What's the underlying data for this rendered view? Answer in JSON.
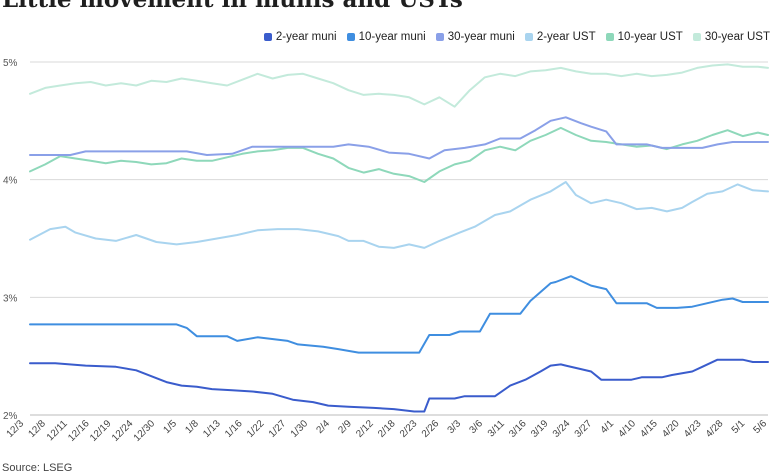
{
  "chart_data": {
    "type": "line",
    "title": "Little movement in munis and USTs",
    "source": "Source: LSEG",
    "y_ticks": [
      "5%",
      "4%",
      "3%",
      "2%"
    ],
    "ylim": [
      2,
      5
    ],
    "grid": true,
    "legend_position": "top-right",
    "x_tick_labels": [
      "12/3",
      "12/8",
      "12/11",
      "12/16",
      "12/19",
      "12/24",
      "12/30",
      "1/5",
      "1/8",
      "1/13",
      "1/16",
      "1/22",
      "1/27",
      "1/30",
      "2/4",
      "2/9",
      "2/12",
      "2/18",
      "2/23",
      "2/26",
      "3/3",
      "3/6",
      "3/11",
      "3/16",
      "3/19",
      "3/24",
      "3/27",
      "4/1",
      "4/10",
      "4/15",
      "4/20",
      "4/23",
      "4/28",
      "5/1",
      "5/6"
    ],
    "series": [
      {
        "name": "2-year muni",
        "color": "#3a5ccc",
        "values": [
          [
            0,
            2.44
          ],
          [
            5,
            2.44
          ],
          [
            11,
            2.42
          ],
          [
            17,
            2.41
          ],
          [
            21,
            2.38
          ],
          [
            24,
            2.33
          ],
          [
            27,
            2.28
          ],
          [
            30,
            2.25
          ],
          [
            33,
            2.24
          ],
          [
            36,
            2.22
          ],
          [
            40,
            2.21
          ],
          [
            44,
            2.2
          ],
          [
            48,
            2.18
          ],
          [
            52,
            2.13
          ],
          [
            56,
            2.11
          ],
          [
            59,
            2.08
          ],
          [
            63,
            2.07
          ],
          [
            68,
            2.06
          ],
          [
            72,
            2.05
          ],
          [
            76,
            2.03
          ],
          [
            78,
            2.03
          ],
          [
            79,
            2.14
          ],
          [
            84,
            2.14
          ],
          [
            86,
            2.16
          ],
          [
            92,
            2.16
          ],
          [
            95,
            2.25
          ],
          [
            98,
            2.3
          ],
          [
            101,
            2.37
          ],
          [
            103,
            2.42
          ],
          [
            105,
            2.43
          ],
          [
            106,
            2.42
          ],
          [
            109,
            2.39
          ],
          [
            111,
            2.37
          ],
          [
            113,
            2.3
          ],
          [
            119,
            2.3
          ],
          [
            121,
            2.32
          ],
          [
            125,
            2.32
          ],
          [
            127,
            2.34
          ],
          [
            131,
            2.37
          ],
          [
            133,
            2.41
          ],
          [
            136,
            2.47
          ],
          [
            141,
            2.47
          ],
          [
            143,
            2.45
          ],
          [
            146,
            2.45
          ]
        ]
      },
      {
        "name": "10-year muni",
        "color": "#3f8ee0",
        "values": [
          [
            0,
            2.77
          ],
          [
            29,
            2.77
          ],
          [
            31,
            2.74
          ],
          [
            33,
            2.67
          ],
          [
            39,
            2.67
          ],
          [
            41,
            2.63
          ],
          [
            45,
            2.66
          ],
          [
            51,
            2.63
          ],
          [
            53,
            2.6
          ],
          [
            58,
            2.58
          ],
          [
            61,
            2.56
          ],
          [
            65,
            2.53
          ],
          [
            77,
            2.53
          ],
          [
            79,
            2.68
          ],
          [
            83,
            2.68
          ],
          [
            85,
            2.71
          ],
          [
            89,
            2.71
          ],
          [
            91,
            2.86
          ],
          [
            97,
            2.86
          ],
          [
            99,
            2.97
          ],
          [
            103,
            3.12
          ],
          [
            104,
            3.13
          ],
          [
            107,
            3.18
          ],
          [
            109,
            3.14
          ],
          [
            111,
            3.1
          ],
          [
            114,
            3.07
          ],
          [
            116,
            2.95
          ],
          [
            122,
            2.95
          ],
          [
            124,
            2.91
          ],
          [
            128,
            2.91
          ],
          [
            131,
            2.92
          ],
          [
            134,
            2.95
          ],
          [
            137,
            2.98
          ],
          [
            139,
            2.99
          ],
          [
            141,
            2.96
          ],
          [
            146,
            2.96
          ]
        ]
      },
      {
        "name": "30-year muni",
        "color": "#8aa0e8",
        "values": [
          [
            0,
            4.21
          ],
          [
            8,
            4.21
          ],
          [
            11,
            4.24
          ],
          [
            15,
            4.24
          ],
          [
            19,
            4.24
          ],
          [
            24,
            4.24
          ],
          [
            28,
            4.24
          ],
          [
            31,
            4.24
          ],
          [
            35,
            4.21
          ],
          [
            40,
            4.22
          ],
          [
            44,
            4.28
          ],
          [
            50,
            4.28
          ],
          [
            56,
            4.28
          ],
          [
            60,
            4.28
          ],
          [
            63,
            4.3
          ],
          [
            67,
            4.28
          ],
          [
            71,
            4.23
          ],
          [
            75,
            4.22
          ],
          [
            79,
            4.18
          ],
          [
            82,
            4.25
          ],
          [
            86,
            4.27
          ],
          [
            90,
            4.3
          ],
          [
            93,
            4.35
          ],
          [
            97,
            4.35
          ],
          [
            100,
            4.42
          ],
          [
            103,
            4.5
          ],
          [
            106,
            4.53
          ],
          [
            109,
            4.48
          ],
          [
            111,
            4.45
          ],
          [
            114,
            4.41
          ],
          [
            116,
            4.3
          ],
          [
            122,
            4.3
          ],
          [
            125,
            4.27
          ],
          [
            129,
            4.27
          ],
          [
            133,
            4.27
          ],
          [
            136,
            4.3
          ],
          [
            139,
            4.32
          ],
          [
            142,
            4.32
          ],
          [
            146,
            4.32
          ]
        ]
      },
      {
        "name": "2-year UST",
        "color": "#a9d4ef",
        "values": [
          [
            0,
            3.49
          ],
          [
            4,
            3.58
          ],
          [
            7,
            3.6
          ],
          [
            9,
            3.55
          ],
          [
            13,
            3.5
          ],
          [
            17,
            3.48
          ],
          [
            21,
            3.53
          ],
          [
            25,
            3.47
          ],
          [
            29,
            3.45
          ],
          [
            33,
            3.47
          ],
          [
            37,
            3.5
          ],
          [
            41,
            3.53
          ],
          [
            45,
            3.57
          ],
          [
            49,
            3.58
          ],
          [
            53,
            3.58
          ],
          [
            57,
            3.56
          ],
          [
            61,
            3.52
          ],
          [
            63,
            3.48
          ],
          [
            66,
            3.48
          ],
          [
            69,
            3.43
          ],
          [
            72,
            3.42
          ],
          [
            75,
            3.45
          ],
          [
            78,
            3.42
          ],
          [
            81,
            3.48
          ],
          [
            85,
            3.55
          ],
          [
            88,
            3.6
          ],
          [
            92,
            3.7
          ],
          [
            95,
            3.73
          ],
          [
            99,
            3.83
          ],
          [
            103,
            3.9
          ],
          [
            106,
            3.98
          ],
          [
            108,
            3.87
          ],
          [
            111,
            3.8
          ],
          [
            114,
            3.83
          ],
          [
            117,
            3.8
          ],
          [
            120,
            3.75
          ],
          [
            123,
            3.76
          ],
          [
            126,
            3.73
          ],
          [
            129,
            3.76
          ],
          [
            131,
            3.81
          ],
          [
            134,
            3.88
          ],
          [
            137,
            3.9
          ],
          [
            140,
            3.96
          ],
          [
            143,
            3.91
          ],
          [
            146,
            3.9
          ]
        ]
      },
      {
        "name": "10-year UST",
        "color": "#8ed8ba",
        "values": [
          [
            0,
            4.07
          ],
          [
            3,
            4.13
          ],
          [
            6,
            4.2
          ],
          [
            9,
            4.18
          ],
          [
            12,
            4.16
          ],
          [
            15,
            4.14
          ],
          [
            18,
            4.16
          ],
          [
            21,
            4.15
          ],
          [
            24,
            4.13
          ],
          [
            27,
            4.14
          ],
          [
            30,
            4.18
          ],
          [
            33,
            4.16
          ],
          [
            36,
            4.16
          ],
          [
            39,
            4.19
          ],
          [
            42,
            4.22
          ],
          [
            45,
            4.24
          ],
          [
            48,
            4.25
          ],
          [
            51,
            4.27
          ],
          [
            54,
            4.27
          ],
          [
            57,
            4.22
          ],
          [
            60,
            4.18
          ],
          [
            63,
            4.1
          ],
          [
            66,
            4.06
          ],
          [
            69,
            4.09
          ],
          [
            72,
            4.05
          ],
          [
            75,
            4.03
          ],
          [
            78,
            3.98
          ],
          [
            81,
            4.07
          ],
          [
            84,
            4.13
          ],
          [
            87,
            4.16
          ],
          [
            90,
            4.25
          ],
          [
            93,
            4.28
          ],
          [
            96,
            4.25
          ],
          [
            99,
            4.33
          ],
          [
            102,
            4.38
          ],
          [
            105,
            4.44
          ],
          [
            108,
            4.38
          ],
          [
            111,
            4.33
          ],
          [
            114,
            4.32
          ],
          [
            117,
            4.3
          ],
          [
            120,
            4.28
          ],
          [
            123,
            4.29
          ],
          [
            126,
            4.26
          ],
          [
            129,
            4.3
          ],
          [
            132,
            4.33
          ],
          [
            135,
            4.38
          ],
          [
            138,
            4.42
          ],
          [
            141,
            4.37
          ],
          [
            144,
            4.4
          ],
          [
            146,
            4.38
          ]
        ]
      },
      {
        "name": "30-year UST",
        "color": "#c3eadb",
        "values": [
          [
            0,
            4.73
          ],
          [
            3,
            4.78
          ],
          [
            6,
            4.8
          ],
          [
            9,
            4.82
          ],
          [
            12,
            4.83
          ],
          [
            15,
            4.8
          ],
          [
            18,
            4.82
          ],
          [
            21,
            4.8
          ],
          [
            24,
            4.84
          ],
          [
            27,
            4.83
          ],
          [
            30,
            4.86
          ],
          [
            33,
            4.84
          ],
          [
            36,
            4.82
          ],
          [
            39,
            4.8
          ],
          [
            42,
            4.85
          ],
          [
            45,
            4.9
          ],
          [
            48,
            4.86
          ],
          [
            51,
            4.89
          ],
          [
            54,
            4.9
          ],
          [
            57,
            4.86
          ],
          [
            60,
            4.82
          ],
          [
            63,
            4.76
          ],
          [
            66,
            4.72
          ],
          [
            69,
            4.73
          ],
          [
            72,
            4.72
          ],
          [
            75,
            4.7
          ],
          [
            78,
            4.64
          ],
          [
            81,
            4.7
          ],
          [
            84,
            4.62
          ],
          [
            87,
            4.76
          ],
          [
            90,
            4.87
          ],
          [
            93,
            4.9
          ],
          [
            96,
            4.88
          ],
          [
            99,
            4.92
          ],
          [
            102,
            4.93
          ],
          [
            105,
            4.95
          ],
          [
            108,
            4.92
          ],
          [
            111,
            4.9
          ],
          [
            114,
            4.9
          ],
          [
            117,
            4.88
          ],
          [
            120,
            4.9
          ],
          [
            123,
            4.88
          ],
          [
            126,
            4.89
          ],
          [
            129,
            4.91
          ],
          [
            132,
            4.95
          ],
          [
            135,
            4.97
          ],
          [
            138,
            4.98
          ],
          [
            141,
            4.96
          ],
          [
            144,
            4.96
          ],
          [
            146,
            4.95
          ]
        ]
      }
    ]
  }
}
